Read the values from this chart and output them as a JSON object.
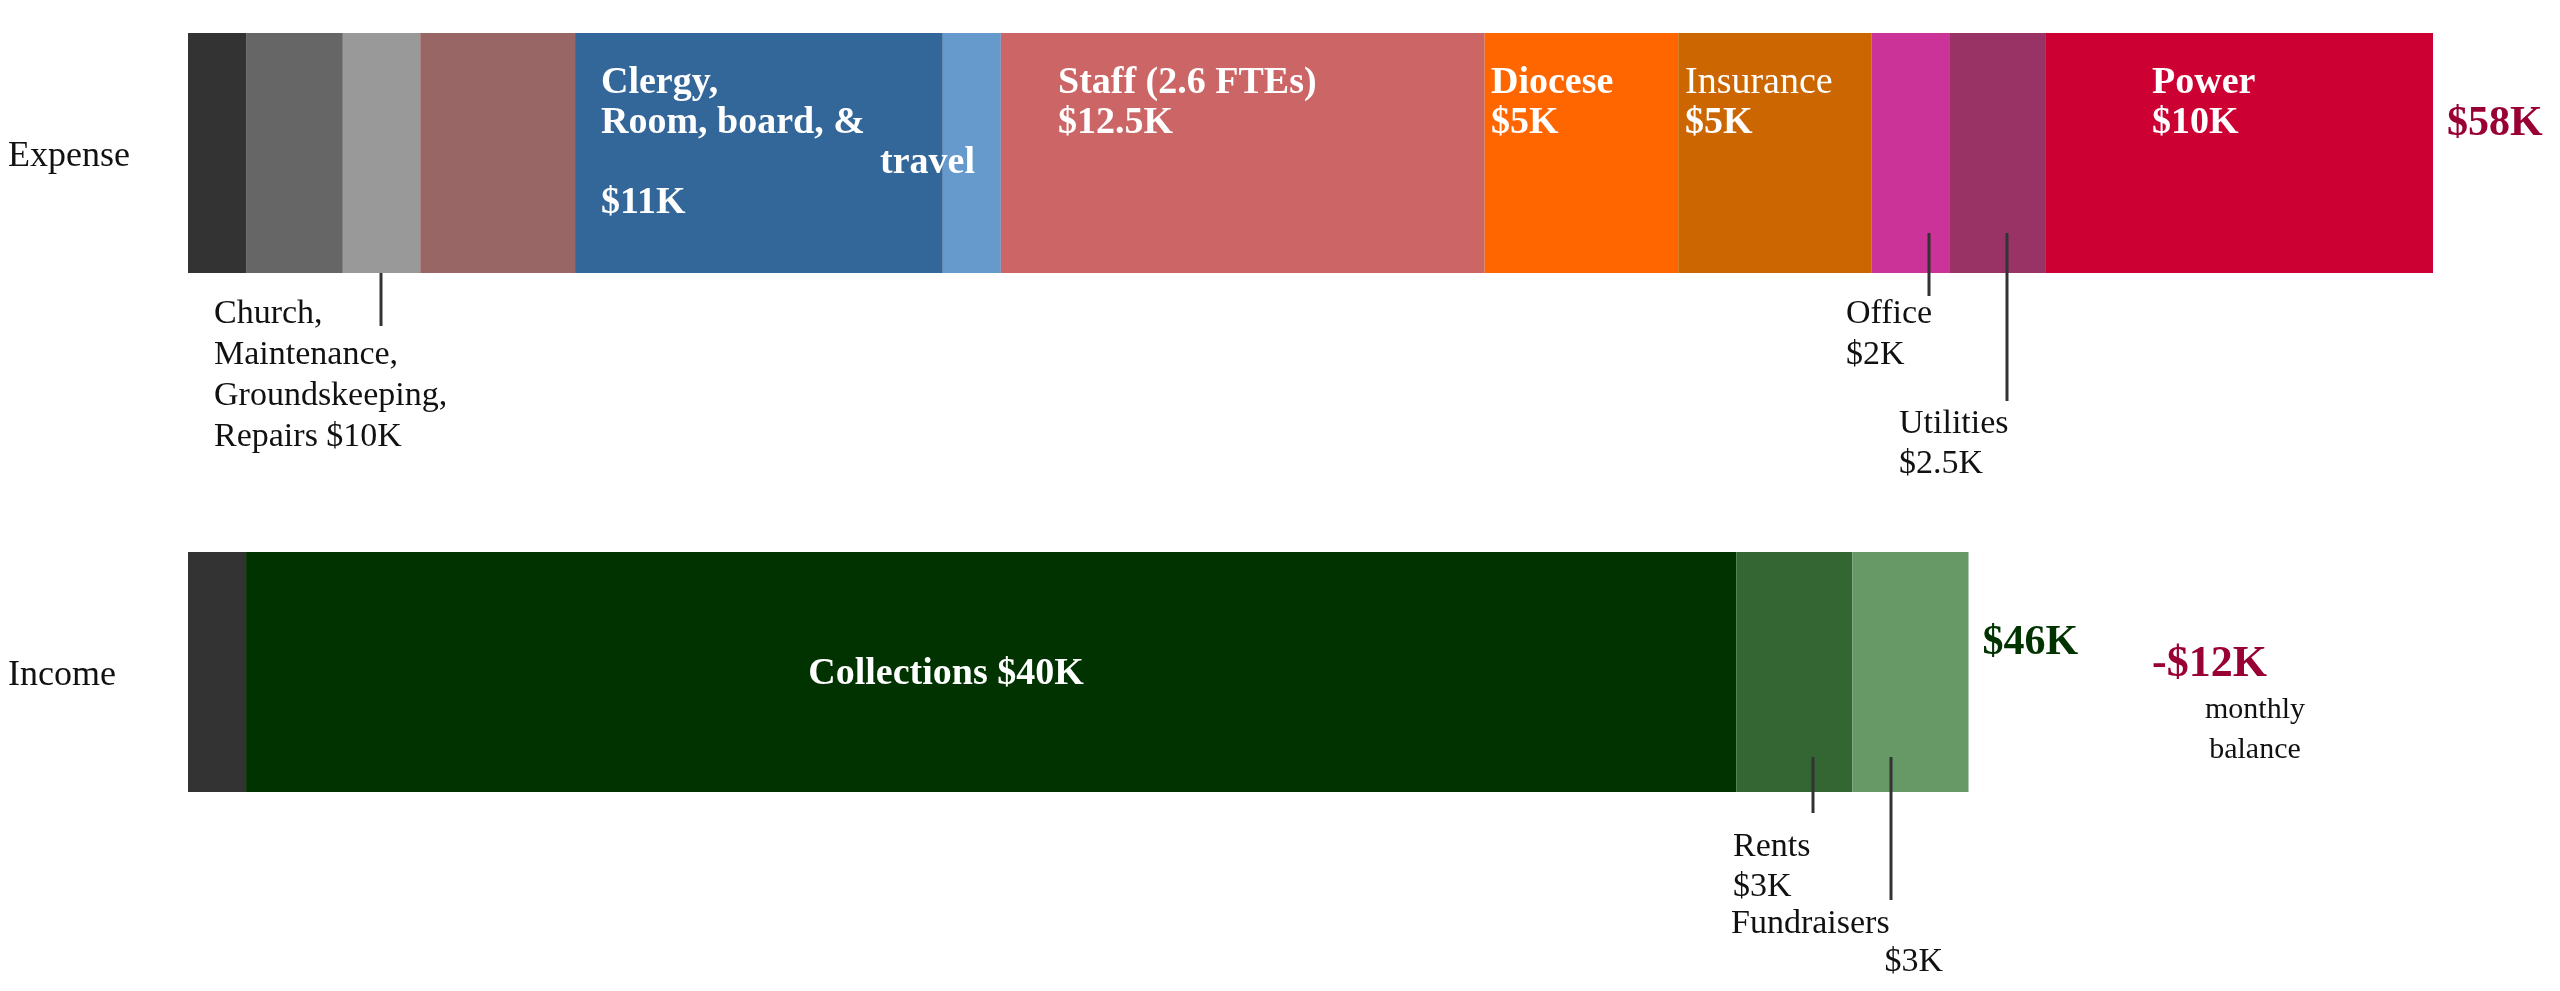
{
  "chart_data": {
    "type": "bar",
    "orientation": "horizontal",
    "stacked": true,
    "tick_labels": "y",
    "categories": [
      "Expense",
      "Income"
    ],
    "series": [
      {
        "color": "#333333",
        "values": [
          1.5,
          1.5
        ]
      },
      {
        "color": "#666666",
        "values": [
          2.5,
          null
        ]
      },
      {
        "color": "#999999",
        "values": [
          2,
          null
        ]
      },
      {
        "color": "#996666",
        "values": [
          4,
          null
        ]
      },
      {
        "color": "#336699",
        "values": [
          9.5,
          null
        ]
      },
      {
        "color": "#6699cc",
        "values": [
          1.5,
          null
        ]
      },
      {
        "color": "#cc6666",
        "values": [
          12.5,
          null
        ],
        "value_labels": [
          "$12.5K",
          null
        ]
      },
      {
        "color": "#ff6600",
        "values": [
          5,
          null
        ],
        "value_labels": [
          "$5K",
          null
        ]
      },
      {
        "color": "#cc6600",
        "values": [
          5,
          null
        ],
        "value_labels": [
          "$5K",
          null
        ]
      },
      {
        "color": "#cc3399",
        "values": [
          2,
          null
        ]
      },
      {
        "color": "#993366",
        "values": [
          2.5,
          null
        ]
      },
      {
        "color": "#cc0033",
        "values": [
          10,
          null
        ],
        "value_labels": [
          "$10K",
          null
        ]
      },
      {
        "color": "#003300",
        "values": [
          null,
          38.5
        ]
      },
      {
        "color": "#336633",
        "values": [
          null,
          3
        ]
      },
      {
        "color": "#669966",
        "values": [
          null,
          3
        ]
      }
    ],
    "totals": [
      "$58K",
      "$46K"
    ],
    "annotations": [
      "Church,\nMaintenance,\nGroundskeeping,\nRepairs $10K",
      "Clergy,\nRoom, board, &\ntravel\n$11K",
      "Staff  (2.6 FTEs)",
      "Diocese",
      "Insurance",
      "Office\n$2K",
      "Utilities\n$2.5K",
      "Power",
      "Collections $40K",
      "Rents\n$3K",
      "Fundraisers\n$3K",
      "-$12K",
      "monthly\nbalance"
    ]
  }
}
